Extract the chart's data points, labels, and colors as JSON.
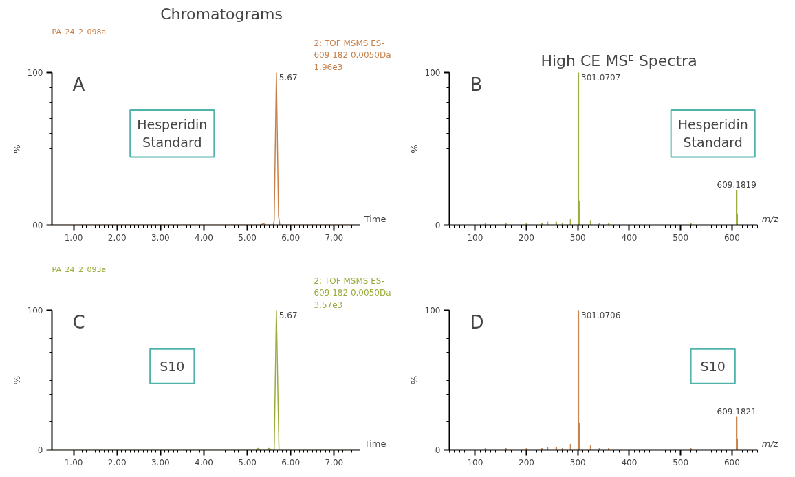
{
  "chart_data": [
    {
      "type": "line",
      "title": "Chromatograms",
      "ylabel": "%",
      "xlabel": "Time",
      "x": [
        0.5,
        5.3,
        5.38,
        5.42,
        5.6,
        5.62,
        5.67,
        5.72,
        5.75,
        7.6
      ],
      "series": [
        {
          "color": "#c8804a",
          "values": [
            0,
            0,
            1,
            0,
            0,
            3,
            100,
            6,
            0,
            0
          ]
        }
      ],
      "xlim": [
        0.5,
        7.6
      ],
      "ylim": [
        0,
        100
      ],
      "xticks": [
        {
          "value": 1,
          "label": "1.00"
        },
        {
          "value": 2,
          "label": "2.00"
        },
        {
          "value": 3,
          "label": "3.00"
        },
        {
          "value": 4,
          "label": "4.00"
        },
        {
          "value": 5,
          "label": "5.00"
        },
        {
          "value": 6,
          "label": "6.00"
        },
        {
          "value": 7,
          "label": "7.00"
        }
      ],
      "yticks": [
        {
          "value": 0,
          "label": "00"
        },
        100
      ],
      "grid": false,
      "annotations": [
        "PA_24_2_098a",
        "2: TOF MSMS ES-\n609.182 0.0050Da\n1.96e3",
        "A",
        "Hesperidin Standard",
        {
          "text": "5.67",
          "x": 5.67,
          "y": 100
        }
      ]
    },
    {
      "type": "bar",
      "title": "High CE MSᴱ Spectra",
      "ylabel": "%",
      "xlabel": "m/z",
      "x": [
        120,
        160,
        200,
        230,
        241,
        258,
        270,
        286,
        301.0707,
        302.07,
        325,
        342,
        360,
        520,
        609.1819,
        610.18
      ],
      "series": [
        {
          "color": "#9aab3a",
          "values": [
            1,
            1,
            1,
            1,
            2,
            2,
            1,
            4,
            100,
            16,
            3,
            1,
            1,
            1,
            23,
            7
          ]
        }
      ],
      "xlim": [
        50,
        650
      ],
      "ylim": [
        0,
        100
      ],
      "xticks": [
        100,
        200,
        300,
        400,
        500,
        600
      ],
      "yticks": [
        0,
        100
      ],
      "grid": false,
      "annotations": [
        "B",
        "Hesperidin Standard",
        {
          "text": "301.0707",
          "x": 301.0707,
          "y": 100
        },
        {
          "text": "609.1819",
          "x": 609.1819,
          "y": 23
        }
      ]
    },
    {
      "type": "line",
      "ylabel": "%",
      "xlabel": "Time",
      "x": [
        0.5,
        5.2,
        5.25,
        5.3,
        5.45,
        5.5,
        5.55,
        5.62,
        5.67,
        5.73,
        7.6
      ],
      "series": [
        {
          "color": "#9aab3a",
          "values": [
            0,
            0,
            1,
            0,
            0,
            1,
            0,
            0,
            100,
            0,
            0
          ]
        }
      ],
      "xlim": [
        0.5,
        7.6
      ],
      "ylim": [
        0,
        100
      ],
      "xticks": [
        {
          "value": 1,
          "label": "1.00"
        },
        {
          "value": 2,
          "label": "2.00"
        },
        {
          "value": 3,
          "label": "3.00"
        },
        {
          "value": 4,
          "label": "4.00"
        },
        {
          "value": 5,
          "label": "5.00"
        },
        {
          "value": 6,
          "label": "6.00"
        },
        {
          "value": 7,
          "label": "7.00"
        }
      ],
      "yticks": [
        0,
        100
      ],
      "grid": false,
      "annotations": [
        "PA_24_2_093a",
        "2: TOF MSMS ES-\n609.182 0.0050Da\n3.57e3",
        "C",
        "S10",
        {
          "text": "5.67",
          "x": 5.67,
          "y": 100
        }
      ]
    },
    {
      "type": "bar",
      "ylabel": "%",
      "xlabel": "m/z",
      "x": [
        120,
        160,
        200,
        230,
        241,
        258,
        270,
        286,
        301.0706,
        302.07,
        325,
        342,
        360,
        520,
        609.1821,
        610.18
      ],
      "series": [
        {
          "color": "#c8804a",
          "values": [
            1,
            1,
            1,
            1,
            2,
            2,
            1,
            4,
            100,
            19,
            3,
            1,
            1,
            1,
            24,
            8
          ]
        }
      ],
      "xlim": [
        50,
        650
      ],
      "ylim": [
        0,
        100
      ],
      "xticks": [
        100,
        200,
        300,
        400,
        500,
        600
      ],
      "yticks": [
        0,
        100
      ],
      "grid": false,
      "annotations": [
        "D",
        "S10",
        {
          "text": "301.0706",
          "x": 301.0706,
          "y": 100
        },
        {
          "text": "609.1821",
          "x": 609.1821,
          "y": 24
        }
      ]
    }
  ]
}
